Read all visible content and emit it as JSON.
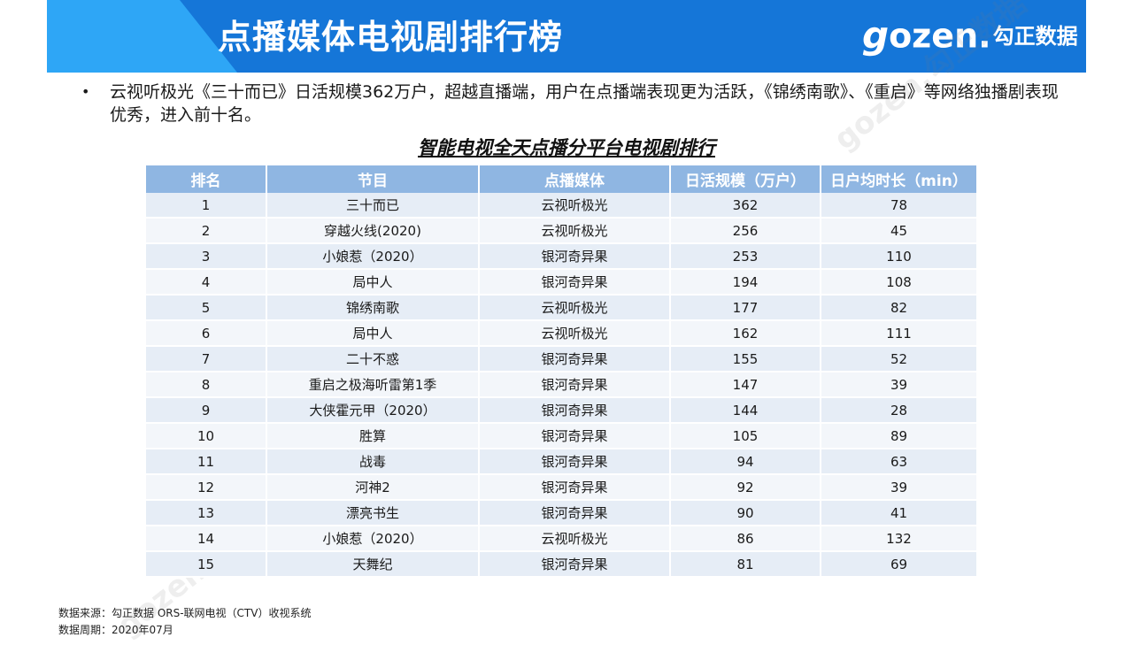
{
  "header": {
    "title": "点播媒体电视剧排行榜",
    "logo_text": "gozen.勾正数据"
  },
  "summary": {
    "bullet": "•",
    "text": "云视听极光《三十而已》日活规模362万户，超越直播端，用户在点播端表现更为活跃，《锦绣南歌》、《重启》等网络独播剧表现优秀，进入前十名。"
  },
  "table": {
    "title": "智能电视全天点播分平台电视剧排行",
    "columns": [
      "排名",
      "节目",
      "点播媒体",
      "日活规模（万户）",
      "日户均时长（min）"
    ],
    "rows": [
      [
        "1",
        "三十而已",
        "云视听极光",
        "362",
        "78"
      ],
      [
        "2",
        "穿越火线(2020)",
        "云视听极光",
        "256",
        "45"
      ],
      [
        "3",
        "小娘惹（2020）",
        "银河奇异果",
        "253",
        "110"
      ],
      [
        "4",
        "局中人",
        "银河奇异果",
        "194",
        "108"
      ],
      [
        "5",
        "锦绣南歌",
        "云视听极光",
        "177",
        "82"
      ],
      [
        "6",
        "局中人",
        "云视听极光",
        "162",
        "111"
      ],
      [
        "7",
        "二十不惑",
        "银河奇异果",
        "155",
        "52"
      ],
      [
        "8",
        "重启之极海听雷第1季",
        "银河奇异果",
        "147",
        "39"
      ],
      [
        "9",
        "大侠霍元甲（2020）",
        "银河奇异果",
        "144",
        "28"
      ],
      [
        "10",
        "胜算",
        "银河奇异果",
        "105",
        "89"
      ],
      [
        "11",
        "战毒",
        "银河奇异果",
        "94",
        "63"
      ],
      [
        "12",
        "河神2",
        "银河奇异果",
        "92",
        "39"
      ],
      [
        "13",
        "漂亮书生",
        "银河奇异果",
        "90",
        "41"
      ],
      [
        "14",
        "小娘惹（2020）",
        "云视听极光",
        "86",
        "132"
      ],
      [
        "15",
        "天舞纪",
        "银河奇异果",
        "81",
        "69"
      ]
    ]
  },
  "footer": {
    "source": "数据来源：勾正数据 ORS-联网电视（CTV）收视系统",
    "period": "数据周期：2020年07月"
  },
  "colors": {
    "banner_blue": "#1576d8",
    "banner_light_blue": "#2ea6f6",
    "table_header": "#8fb6e2",
    "row_odd": "#e6edf6",
    "row_even": "#f3f6fa"
  }
}
